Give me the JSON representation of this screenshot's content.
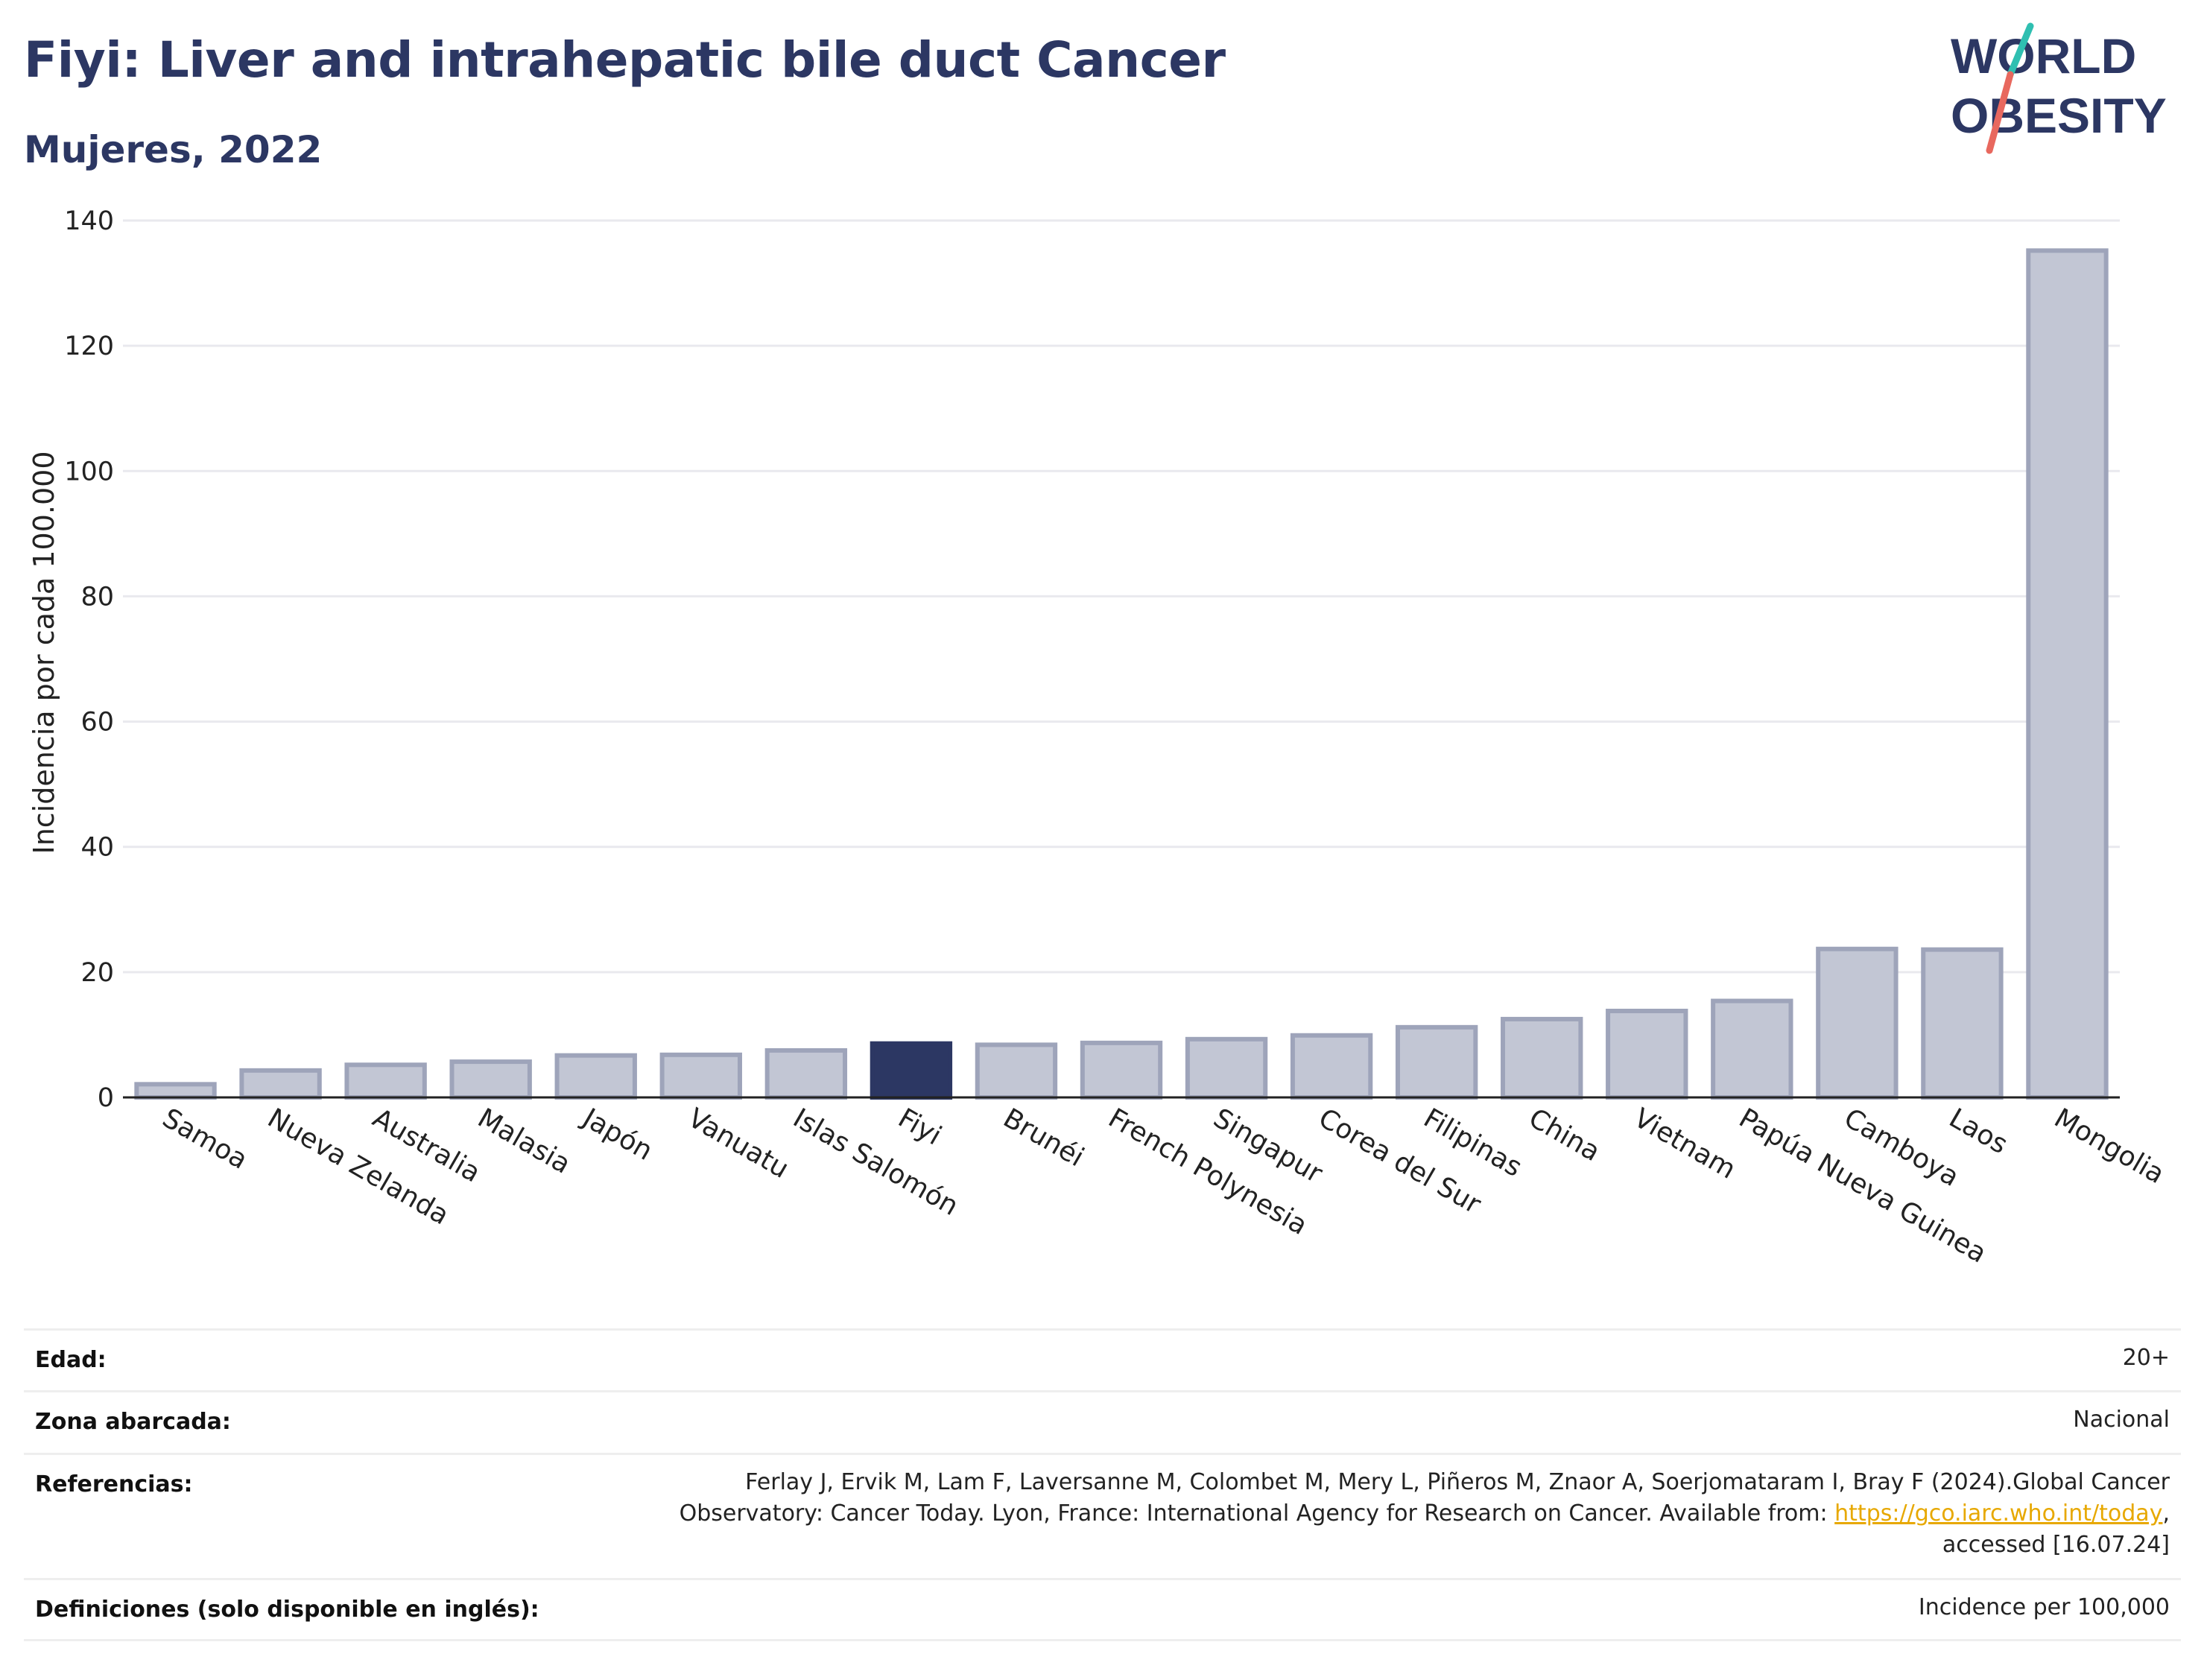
{
  "header": {
    "title": "Fiyi: Liver and intrahepatic bile duct Cancer",
    "subtitle": "Mujeres, 2022"
  },
  "logo": {
    "line1": "WORLD",
    "line2": "OBESITY",
    "accent_colors": [
      "#2fbfb1",
      "#e8685e"
    ]
  },
  "chart_data": {
    "type": "bar",
    "title": "Fiyi: Liver and intrahepatic bile duct Cancer",
    "subtitle": "Mujeres, 2022",
    "xlabel": "",
    "ylabel": "Incidencia por cada 100.000",
    "ylim": [
      0,
      140
    ],
    "yticks": [
      0,
      20,
      40,
      60,
      80,
      100,
      120,
      140
    ],
    "grid": true,
    "categories": [
      "Samoa",
      "Nueva Zelanda",
      "Australia",
      "Malasia",
      "Japón",
      "Vanuatu",
      "Islas Salomón",
      "Fiyi",
      "Brunéi",
      "French Polynesia",
      "Singapur",
      "Corea del Sur",
      "Filipinas",
      "China",
      "Vietnam",
      "Papúa Nueva Guinea",
      "Camboya",
      "Laos",
      "Mongolia"
    ],
    "values": [
      2.1,
      4.3,
      5.2,
      5.7,
      6.7,
      6.8,
      7.5,
      8.6,
      8.4,
      8.7,
      9.3,
      9.9,
      11.2,
      12.5,
      13.8,
      15.4,
      23.7,
      23.6,
      135.2
    ],
    "highlight": "Fiyi",
    "colors": {
      "bar": "#c2c6d4",
      "bar_border": "#9ea4ba",
      "highlight": "#2c3763",
      "grid": "#e9e9ee",
      "axis": "#222222"
    }
  },
  "meta": {
    "rows": [
      {
        "key": "Edad:",
        "lines": [
          "20+"
        ]
      },
      {
        "key": "Zona abarcada:",
        "lines": [
          "Nacional"
        ]
      },
      {
        "key": "Referencias:",
        "lines": [
          "Ferlay J, Ervik M, Lam F, Laversanne M, Colombet M, Mery L, Piñeros M, Znaor A, Soerjomataram I, Bray F (2024).Global Cancer",
          "Observatory: Cancer Today. Lyon, France: International Agency for Research on Cancer. Available from: ",
          "accessed [16.07.24]"
        ],
        "link_text": "https://gco.iarc.who.int/today",
        "link_suffix": ","
      },
      {
        "key": "Definiciones (solo disponible en inglés):",
        "lines": [
          "Incidence per 100,000"
        ]
      }
    ]
  }
}
